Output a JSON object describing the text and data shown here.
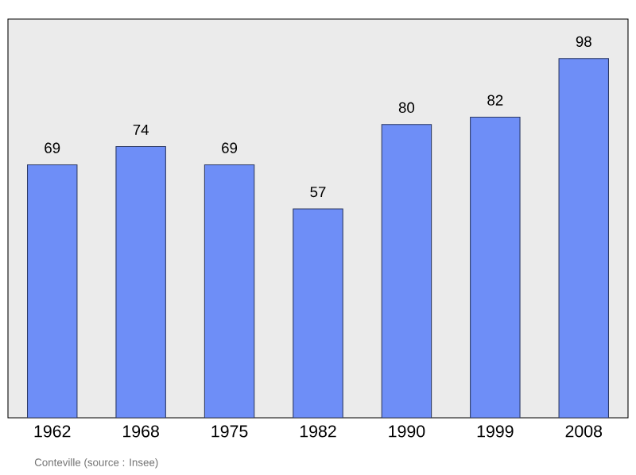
{
  "chart_data": {
    "type": "bar",
    "categories": [
      "1962",
      "1968",
      "1975",
      "1982",
      "1990",
      "1999",
      "2008"
    ],
    "values": [
      69,
      74,
      69,
      57,
      80,
      82,
      98
    ],
    "color": "#6e8ef7",
    "data_labels": true,
    "annotations": [
      "Conteville    (source : Insee)"
    ]
  }
}
